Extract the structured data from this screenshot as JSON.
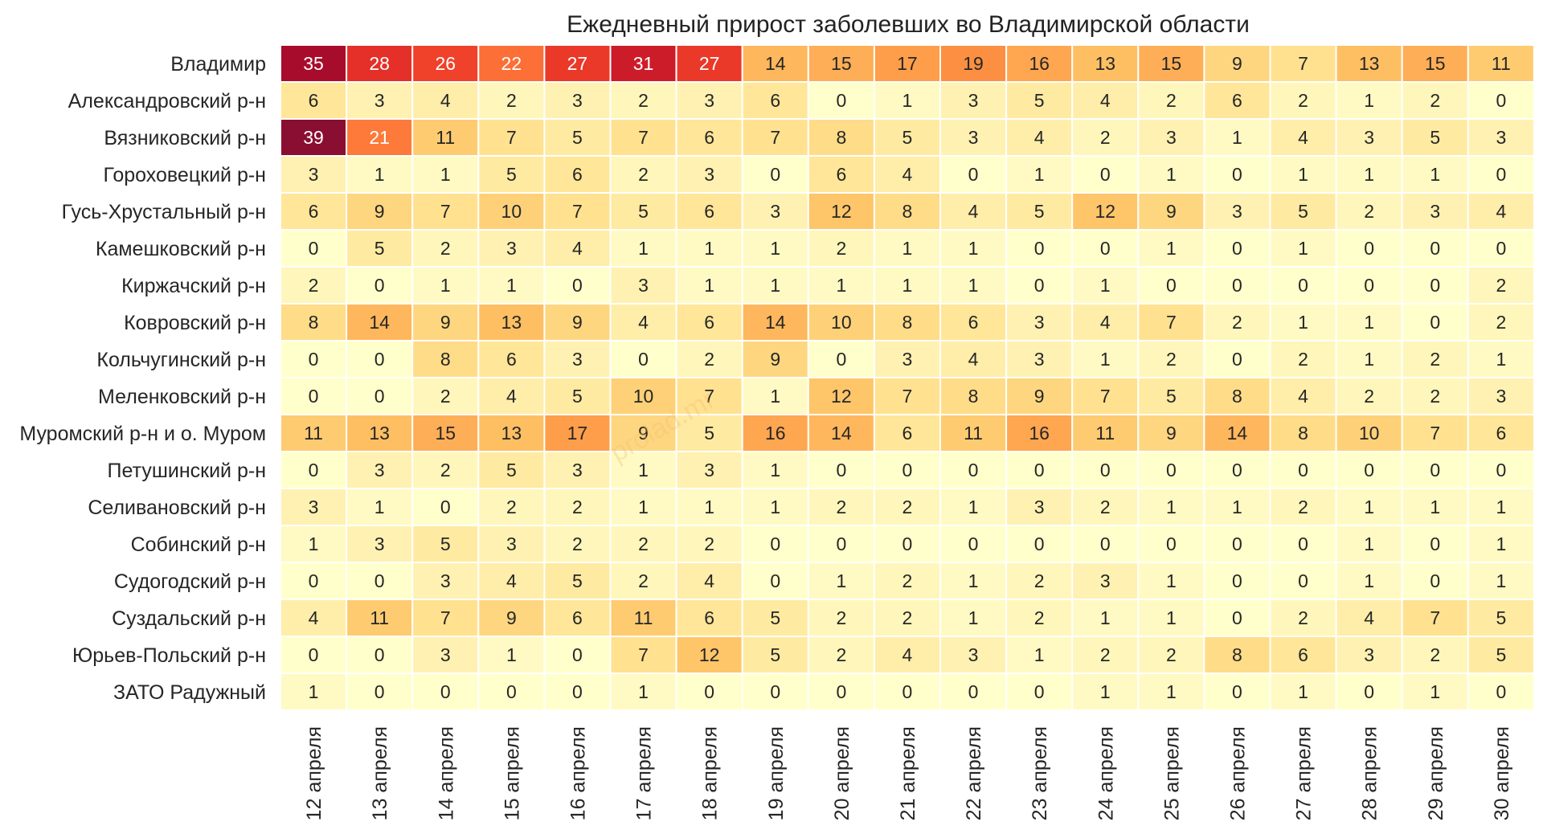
{
  "watermark": "prolad.mr",
  "colors": {
    "scale": [
      "#ffffcc",
      "#fff0b0",
      "#ffe494",
      "#fed27a",
      "#febf62",
      "#fea44e",
      "#fd8b40",
      "#fc6734",
      "#f0412a",
      "#dc2526",
      "#c0142b",
      "#a10a2e",
      "#8a0e32"
    ],
    "grid": "#ffffff",
    "text_dark": "#262626",
    "text_light": "#ffffff"
  },
  "chart_data": {
    "type": "heatmap",
    "title": "Ежедневный прирост заболевших во Владимирской области",
    "xlabel": "",
    "ylabel": "",
    "vmin": 0,
    "vmax": 39,
    "colorbar": false,
    "x": [
      "12 апреля",
      "13 апреля",
      "14 апреля",
      "15 апреля",
      "16 апреля",
      "17 апреля",
      "18 апреля",
      "19 апреля",
      "20 апреля",
      "21 апреля",
      "22 апреля",
      "23 апреля",
      "24 апреля",
      "25 апреля",
      "26 апреля",
      "27 апреля",
      "28 апреля",
      "29 апреля",
      "30 апреля"
    ],
    "y": [
      "Владимир",
      "Александровский р-н",
      "Вязниковский р-н",
      "Гороховецкий р-н",
      "Гусь-Хрустальный р-н",
      "Камешковский р-н",
      "Киржачский р-н",
      "Ковровский р-н",
      "Кольчугинский р-н",
      "Меленковский р-н",
      "Муромский р-н и о. Муром",
      "Петушинский р-н",
      "Селивановский р-н",
      "Собинский р-н",
      "Судогодский р-н",
      "Суздальский р-н",
      "Юрьев-Польский р-н",
      "ЗАТО Радужный"
    ],
    "values": [
      [
        35,
        28,
        26,
        22,
        27,
        31,
        27,
        14,
        15,
        17,
        19,
        16,
        13,
        15,
        9,
        7,
        13,
        15,
        11
      ],
      [
        6,
        3,
        4,
        2,
        3,
        2,
        3,
        6,
        0,
        1,
        3,
        5,
        4,
        2,
        6,
        2,
        1,
        2,
        0
      ],
      [
        39,
        21,
        11,
        7,
        5,
        7,
        6,
        7,
        8,
        5,
        3,
        4,
        2,
        3,
        1,
        4,
        3,
        5,
        3
      ],
      [
        3,
        1,
        1,
        5,
        6,
        2,
        3,
        0,
        6,
        4,
        0,
        1,
        0,
        1,
        0,
        1,
        1,
        1,
        0
      ],
      [
        6,
        9,
        7,
        10,
        7,
        5,
        6,
        3,
        12,
        8,
        4,
        5,
        12,
        9,
        3,
        5,
        2,
        3,
        4
      ],
      [
        0,
        5,
        2,
        3,
        4,
        1,
        1,
        1,
        2,
        1,
        1,
        0,
        0,
        1,
        0,
        1,
        0,
        0,
        0
      ],
      [
        2,
        0,
        1,
        1,
        0,
        3,
        1,
        1,
        1,
        1,
        1,
        0,
        1,
        0,
        0,
        0,
        0,
        0,
        2
      ],
      [
        8,
        14,
        9,
        13,
        9,
        4,
        6,
        14,
        10,
        8,
        6,
        3,
        4,
        7,
        2,
        1,
        1,
        0,
        2
      ],
      [
        0,
        0,
        8,
        6,
        3,
        0,
        2,
        9,
        0,
        3,
        4,
        3,
        1,
        2,
        0,
        2,
        1,
        2,
        1
      ],
      [
        0,
        0,
        2,
        4,
        5,
        10,
        7,
        1,
        12,
        7,
        8,
        9,
        7,
        5,
        8,
        4,
        2,
        2,
        3
      ],
      [
        11,
        13,
        15,
        13,
        17,
        9,
        5,
        16,
        14,
        6,
        11,
        16,
        11,
        9,
        14,
        8,
        10,
        7,
        6
      ],
      [
        0,
        3,
        2,
        5,
        3,
        1,
        3,
        1,
        0,
        0,
        0,
        0,
        0,
        0,
        0,
        0,
        0,
        0,
        0
      ],
      [
        3,
        1,
        0,
        2,
        2,
        1,
        1,
        1,
        2,
        2,
        1,
        3,
        2,
        1,
        1,
        2,
        1,
        1,
        1
      ],
      [
        1,
        3,
        5,
        3,
        2,
        2,
        2,
        0,
        0,
        0,
        0,
        0,
        0,
        0,
        0,
        0,
        1,
        0,
        1
      ],
      [
        0,
        0,
        3,
        4,
        5,
        2,
        4,
        0,
        1,
        2,
        1,
        2,
        3,
        1,
        0,
        0,
        1,
        0,
        1
      ],
      [
        4,
        11,
        7,
        9,
        6,
        11,
        6,
        5,
        2,
        2,
        1,
        2,
        1,
        1,
        0,
        2,
        4,
        7,
        5
      ],
      [
        0,
        0,
        3,
        1,
        0,
        7,
        12,
        5,
        2,
        4,
        3,
        1,
        2,
        2,
        8,
        6,
        3,
        2,
        5
      ],
      [
        1,
        0,
        0,
        0,
        0,
        1,
        0,
        0,
        0,
        0,
        0,
        0,
        1,
        1,
        0,
        1,
        0,
        1,
        0
      ]
    ],
    "annotations": "cell values printed in each cell",
    "grid": true
  }
}
